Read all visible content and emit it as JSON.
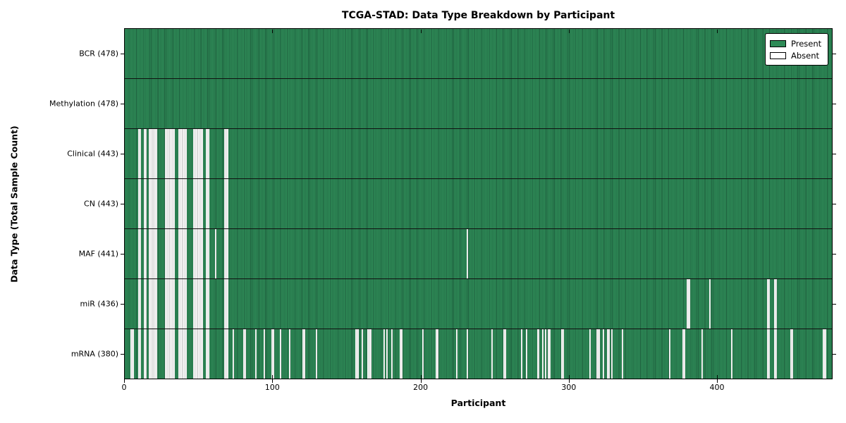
{
  "colors": {
    "present": "#2e8b57",
    "present_edge": "#1d5c3c",
    "absent": "#ffffff",
    "absent_edge": "#b5b5b5",
    "axis": "#000000"
  },
  "chart_data": {
    "type": "heatmap",
    "title": "TCGA-STAD: Data Type Breakdown by Participant",
    "xlabel": "Participant",
    "ylabel": "Data Type (Total Sample Count)",
    "xlim": [
      0,
      478
    ],
    "x_ticks": [
      0,
      100,
      200,
      300,
      400
    ],
    "n_participants": 478,
    "grid": false,
    "legend_position": "upper right",
    "legend_items": [
      {
        "label": "Present",
        "color": "#2e8b57"
      },
      {
        "label": "Absent",
        "color": "#ffffff"
      }
    ],
    "rows": [
      {
        "label": "BCR (478)",
        "name": "BCR",
        "present_count": 478,
        "absent_ranges": []
      },
      {
        "label": "Methylation (478)",
        "name": "Methylation",
        "present_count": 478,
        "absent_ranges": []
      },
      {
        "label": "Clinical (443)",
        "name": "Clinical",
        "present_count": 443,
        "absent_ranges": [
          [
            9,
            10
          ],
          [
            13,
            14
          ],
          [
            16,
            21
          ],
          [
            27,
            33
          ],
          [
            36,
            41
          ],
          [
            46,
            52
          ],
          [
            55,
            56
          ],
          [
            67,
            69
          ]
        ]
      },
      {
        "label": "CN (443)",
        "name": "CN",
        "present_count": 443,
        "absent_ranges": [
          [
            9,
            10
          ],
          [
            13,
            14
          ],
          [
            16,
            21
          ],
          [
            27,
            33
          ],
          [
            36,
            41
          ],
          [
            46,
            52
          ],
          [
            55,
            56
          ],
          [
            67,
            69
          ]
        ]
      },
      {
        "label": "MAF (441)",
        "name": "MAF",
        "present_count": 441,
        "absent_ranges": [
          [
            9,
            10
          ],
          [
            13,
            14
          ],
          [
            16,
            21
          ],
          [
            27,
            33
          ],
          [
            36,
            41
          ],
          [
            46,
            52
          ],
          [
            55,
            56
          ],
          [
            61,
            61
          ],
          [
            67,
            69
          ],
          [
            231,
            231
          ]
        ]
      },
      {
        "label": "miR (436)",
        "name": "miR",
        "present_count": 436,
        "absent_ranges": [
          [
            9,
            10
          ],
          [
            13,
            14
          ],
          [
            16,
            21
          ],
          [
            27,
            33
          ],
          [
            36,
            41
          ],
          [
            46,
            52
          ],
          [
            55,
            56
          ],
          [
            67,
            69
          ],
          [
            380,
            381
          ],
          [
            395,
            395
          ],
          [
            434,
            435
          ],
          [
            439,
            440
          ]
        ]
      },
      {
        "label": "mRNA (380)",
        "name": "mRNA",
        "present_count": 380,
        "absent_ranges": [
          [
            4,
            5
          ],
          [
            9,
            10
          ],
          [
            13,
            14
          ],
          [
            16,
            21
          ],
          [
            27,
            33
          ],
          [
            36,
            41
          ],
          [
            46,
            52
          ],
          [
            55,
            56
          ],
          [
            67,
            69
          ],
          [
            73,
            73
          ],
          [
            80,
            81
          ],
          [
            88,
            88
          ],
          [
            94,
            94
          ],
          [
            99,
            100
          ],
          [
            105,
            105
          ],
          [
            111,
            111
          ],
          [
            120,
            121
          ],
          [
            129,
            129
          ],
          [
            156,
            157
          ],
          [
            160,
            160
          ],
          [
            164,
            166
          ],
          [
            175,
            175
          ],
          [
            177,
            177
          ],
          [
            180,
            180
          ],
          [
            186,
            187
          ],
          [
            201,
            201
          ],
          [
            210,
            211
          ],
          [
            224,
            224
          ],
          [
            231,
            231
          ],
          [
            248,
            248
          ],
          [
            256,
            257
          ],
          [
            268,
            268
          ],
          [
            271,
            271
          ],
          [
            279,
            279
          ],
          [
            282,
            282
          ],
          [
            284,
            284
          ],
          [
            286,
            287
          ],
          [
            295,
            296
          ],
          [
            314,
            314
          ],
          [
            319,
            320
          ],
          [
            323,
            323
          ],
          [
            326,
            327
          ],
          [
            329,
            329
          ],
          [
            336,
            336
          ],
          [
            368,
            368
          ],
          [
            377,
            378
          ],
          [
            390,
            390
          ],
          [
            410,
            410
          ],
          [
            434,
            435
          ],
          [
            439,
            440
          ],
          [
            450,
            451
          ],
          [
            472,
            473
          ]
        ]
      }
    ]
  }
}
